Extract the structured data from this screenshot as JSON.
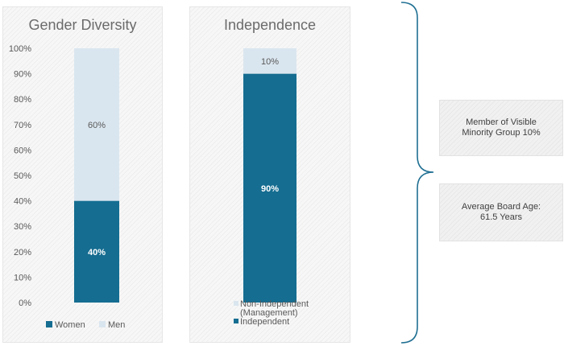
{
  "chart_data": [
    {
      "type": "bar",
      "stacked": true,
      "title": "Gender Diversity",
      "categories": [
        ""
      ],
      "series": [
        {
          "name": "Women",
          "values": [
            40
          ],
          "data_label": "40%",
          "color": "#156d91"
        },
        {
          "name": "Men",
          "values": [
            60
          ],
          "data_label": "60%",
          "color": "#dae6ef"
        }
      ],
      "ylim": [
        0,
        100
      ],
      "y_ticks": [
        "0%",
        "10%",
        "20%",
        "30%",
        "40%",
        "50%",
        "60%",
        "70%",
        "80%",
        "90%",
        "100%"
      ],
      "legend_position": "bottom"
    },
    {
      "type": "bar",
      "stacked": true,
      "title": "Independence",
      "categories": [
        ""
      ],
      "series": [
        {
          "name": "Independent",
          "values": [
            90
          ],
          "data_label": "90%",
          "color": "#156d91"
        },
        {
          "name": "Non-Independent (Management)",
          "legend_lines": [
            "Non-Independent",
            "(Management)"
          ],
          "values": [
            10
          ],
          "data_label": "10%",
          "color": "#dae6ef"
        }
      ],
      "ylim": [
        0,
        100
      ],
      "legend_position": "bottom"
    }
  ],
  "info_boxes": {
    "minority": "Member of Visible Minority Group 10%",
    "age": "Average Board Age: 61.5 Years"
  }
}
